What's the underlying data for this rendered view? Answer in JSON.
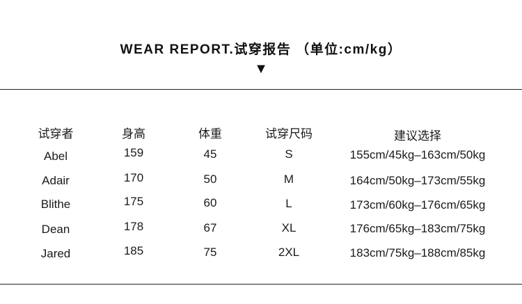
{
  "header": {
    "title": "WEAR REPORT.试穿报告 （单位:cm/kg）",
    "arrow_icon": "down-triangle-icon"
  },
  "table": {
    "columns": [
      "试穿者",
      "身高",
      "体重",
      "试穿尺码",
      "建议选择"
    ],
    "rows": [
      [
        "Abel",
        "159",
        "45",
        "S",
        "155cm/45kg–163cm/50kg"
      ],
      [
        "Adair",
        "170",
        "50",
        "M",
        "164cm/50kg–173cm/55kg"
      ],
      [
        "Blithe",
        "175",
        "60",
        "L",
        "173cm/60kg–176cm/65kg"
      ],
      [
        "Dean",
        "178",
        "67",
        "XL",
        "176cm/65kg–183cm/75kg"
      ],
      [
        "Jared",
        "185",
        "75",
        "2XL",
        "183cm/75kg–188cm/85kg"
      ]
    ]
  }
}
